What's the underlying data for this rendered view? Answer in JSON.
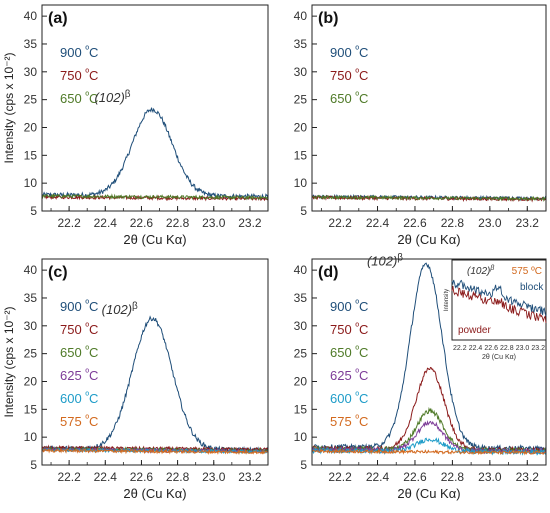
{
  "colors": {
    "900": "#1f4e79",
    "750": "#8b1a1a",
    "650": "#4f7a28",
    "625": "#7d3c98",
    "600": "#1e9cc8",
    "575": "#d2691e",
    "axis": "#222222"
  },
  "chart_data": [
    {
      "type": "line",
      "panel_label": "(a)",
      "xlabel": "2θ (Cu Kα)",
      "ylabel": "Intensity (cps x 10⁻²)",
      "xlim": [
        22.05,
        23.3
      ],
      "ylim": [
        5,
        42
      ],
      "xticks": [
        "22.2",
        "22.4",
        "22.6",
        "22.8",
        "23.0",
        "23.2"
      ],
      "yticks": [
        "5",
        "10",
        "15",
        "20",
        "25",
        "30",
        "35",
        "40"
      ],
      "legend": [
        {
          "temp": "900",
          "color": "#1f4e79"
        },
        {
          "temp": "750",
          "color": "#8b1a1a"
        },
        {
          "temp": "650",
          "color": "#4f7a28"
        }
      ],
      "unit": "ºC",
      "peak_label": {
        "text": "(102)",
        "sup": "β"
      },
      "series": [
        {
          "name": "900 ºC",
          "color": "#1f4e79",
          "baseline": 7.9,
          "peak_height": 15.5,
          "center": 22.66,
          "width": 0.11
        },
        {
          "name": "750 ºC",
          "color": "#8b1a1a",
          "baseline": 7.5,
          "peak_height": 0,
          "center": 22.66,
          "width": 0.1
        },
        {
          "name": "650 ºC",
          "color": "#4f7a28",
          "baseline": 7.7,
          "peak_height": 0,
          "center": 22.66,
          "width": 0.1
        }
      ]
    },
    {
      "type": "line",
      "panel_label": "(b)",
      "xlabel": "2θ (Cu Kα)",
      "ylabel": "",
      "xlim": [
        22.05,
        23.3
      ],
      "ylim": [
        5,
        42
      ],
      "xticks": [
        "22.2",
        "22.4",
        "22.6",
        "22.8",
        "23.0",
        "23.2"
      ],
      "yticks": [
        "5",
        "10",
        "15",
        "20",
        "25",
        "30",
        "35",
        "40"
      ],
      "legend": [
        {
          "temp": "900",
          "color": "#1f4e79"
        },
        {
          "temp": "750",
          "color": "#8b1a1a"
        },
        {
          "temp": "650",
          "color": "#4f7a28"
        }
      ],
      "unit": "ºC",
      "series": [
        {
          "name": "900 ºC",
          "color": "#1f4e79",
          "baseline": 7.6,
          "peak_height": 0,
          "center": 22.66,
          "width": 0.1
        },
        {
          "name": "750 ºC",
          "color": "#8b1a1a",
          "baseline": 7.4,
          "peak_height": 0,
          "center": 22.66,
          "width": 0.1
        },
        {
          "name": "650 ºC",
          "color": "#4f7a28",
          "baseline": 7.5,
          "peak_height": 0,
          "center": 22.66,
          "width": 0.1
        }
      ]
    },
    {
      "type": "line",
      "panel_label": "(c)",
      "xlabel": "2θ (Cu Kα)",
      "ylabel": "Intensity (cps x 10⁻²)",
      "xlim": [
        22.05,
        23.3
      ],
      "ylim": [
        5,
        42
      ],
      "xticks": [
        "22.2",
        "22.4",
        "22.6",
        "22.8",
        "23.0",
        "23.2"
      ],
      "yticks": [
        "5",
        "10",
        "15",
        "20",
        "25",
        "30",
        "35",
        "40"
      ],
      "legend": [
        {
          "temp": "900",
          "color": "#1f4e79"
        },
        {
          "temp": "750",
          "color": "#8b1a1a"
        },
        {
          "temp": "650",
          "color": "#4f7a28"
        },
        {
          "temp": "625",
          "color": "#7d3c98"
        },
        {
          "temp": "600",
          "color": "#1e9cc8"
        },
        {
          "temp": "575",
          "color": "#d2691e"
        }
      ],
      "unit": "ºC",
      "peak_label": {
        "text": "(102)",
        "sup": "β"
      },
      "series": [
        {
          "name": "900 ºC",
          "color": "#1f4e79",
          "baseline": 8.0,
          "peak_height": 23.5,
          "center": 22.66,
          "width": 0.11
        },
        {
          "name": "750 ºC",
          "color": "#8b1a1a",
          "baseline": 8.1,
          "peak_height": 0,
          "center": 22.66,
          "width": 0.1
        },
        {
          "name": "650 ºC",
          "color": "#4f7a28",
          "baseline": 7.9,
          "peak_height": 0,
          "center": 22.66,
          "width": 0.1
        },
        {
          "name": "625 ºC",
          "color": "#7d3c98",
          "baseline": 7.8,
          "peak_height": 0,
          "center": 22.66,
          "width": 0.1
        },
        {
          "name": "600 ºC",
          "color": "#1e9cc8",
          "baseline": 7.7,
          "peak_height": 0,
          "center": 22.66,
          "width": 0.1
        },
        {
          "name": "575 ºC",
          "color": "#d2691e",
          "baseline": 7.6,
          "peak_height": 0,
          "center": 22.66,
          "width": 0.1
        }
      ]
    },
    {
      "type": "line",
      "panel_label": "(d)",
      "xlabel": "2θ (Cu Kα)",
      "ylabel": "",
      "xlim": [
        22.05,
        23.3
      ],
      "ylim": [
        5,
        42
      ],
      "xticks": [
        "22.2",
        "22.4",
        "22.6",
        "22.8",
        "23.0",
        "23.2"
      ],
      "yticks": [
        "5",
        "10",
        "15",
        "20",
        "25",
        "30",
        "35",
        "40"
      ],
      "legend": [
        {
          "temp": "900",
          "color": "#1f4e79"
        },
        {
          "temp": "750",
          "color": "#8b1a1a"
        },
        {
          "temp": "650",
          "color": "#4f7a28"
        },
        {
          "temp": "625",
          "color": "#7d3c98"
        },
        {
          "temp": "600",
          "color": "#1e9cc8"
        },
        {
          "temp": "575",
          "color": "#d2691e"
        }
      ],
      "unit": "ºC",
      "peak_label": {
        "text": "(102)",
        "sup": "β"
      },
      "series": [
        {
          "name": "900 ºC",
          "color": "#1f4e79",
          "baseline": 8.3,
          "peak_height": 33.0,
          "center": 22.66,
          "width": 0.085
        },
        {
          "name": "750 ºC",
          "color": "#8b1a1a",
          "baseline": 8.0,
          "peak_height": 14.5,
          "center": 22.68,
          "width": 0.075
        },
        {
          "name": "650 ºC",
          "color": "#4f7a28",
          "baseline": 7.9,
          "peak_height": 7.0,
          "center": 22.68,
          "width": 0.07
        },
        {
          "name": "625 ºC",
          "color": "#7d3c98",
          "baseline": 7.8,
          "peak_height": 5.0,
          "center": 22.68,
          "width": 0.07
        },
        {
          "name": "600 ºC",
          "color": "#1e9cc8",
          "baseline": 7.6,
          "peak_height": 2.2,
          "center": 22.68,
          "width": 0.07
        },
        {
          "name": "575 ºC",
          "color": "#d2691e",
          "baseline": 7.5,
          "peak_height": 0,
          "center": 22.68,
          "width": 0.07
        }
      ],
      "inset": {
        "peak_label": {
          "text": "(102)",
          "sup": "β"
        },
        "temp_label": "575 ºC",
        "ylabel": "Intensity",
        "xlabel": "2θ (Cu Kα)",
        "xticks": [
          "22.2",
          "22.4",
          "22.6",
          "22.8",
          "23.0",
          "23.2"
        ],
        "xlim": [
          22.1,
          23.3
        ],
        "series": [
          {
            "name": "block",
            "color": "#1f4e79"
          },
          {
            "name": "powder",
            "color": "#8b1a1a"
          }
        ]
      }
    }
  ]
}
